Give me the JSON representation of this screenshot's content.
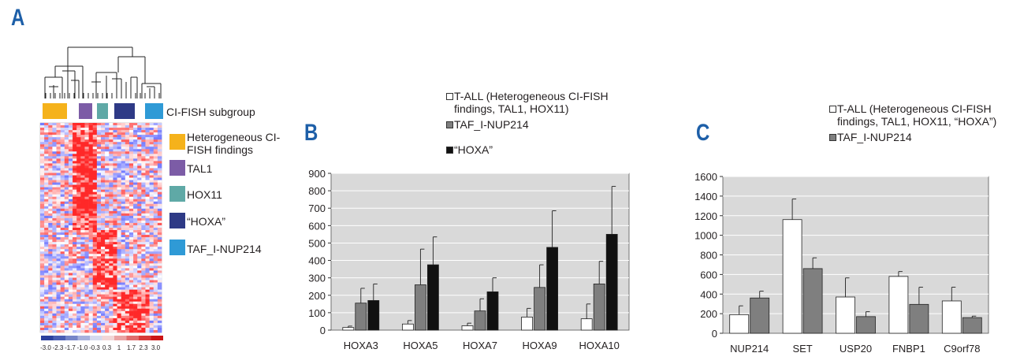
{
  "panels": {
    "a": {
      "letter": "A"
    },
    "b": {
      "letter": "B"
    },
    "c": {
      "letter": "C"
    }
  },
  "panel_a": {
    "subgroup_label": "CI-FISH subgroup",
    "groups": [
      {
        "label": "Heterogeneous CI-FISH findings",
        "color": "#f5b21b"
      },
      {
        "label": "TAL1",
        "color": "#7c5ca6"
      },
      {
        "label": "HOX11",
        "color": "#5fa9a6"
      },
      {
        "label": "“HOXA”",
        "color": "#2e3a86"
      },
      {
        "label": "TAF_I-NUP214",
        "color": "#2f9ad6"
      }
    ],
    "scale_labels": [
      "-3.0",
      "-2.3",
      "-1.7",
      "-1.0",
      "-0.3",
      "0.3",
      "1",
      "1.7",
      "2.3",
      "3.0"
    ]
  },
  "chart_data": [
    {
      "type": "bar",
      "legend": [
        {
          "name": "T-ALL (Heterogeneous CI-FISH findings, TAL1, HOX11)",
          "color": "#ffffff"
        },
        {
          "name": "TAF_I-NUP214",
          "color": "#7f7f7f"
        },
        {
          "name": "“HOXA”",
          "color": "#111111"
        }
      ],
      "categories": [
        "HOXA3",
        "HOXA5",
        "HOXA7",
        "HOXA9",
        "HOXA10"
      ],
      "series": [
        {
          "name": "T-ALL (Heterogeneous CI-FISH findings, TAL1, HOX11)",
          "values": [
            15,
            35,
            25,
            75,
            65
          ],
          "errors": [
            8,
            20,
            15,
            50,
            85
          ]
        },
        {
          "name": "TAF_I-NUP214",
          "values": [
            155,
            260,
            110,
            245,
            265
          ],
          "errors": [
            85,
            205,
            70,
            130,
            130
          ]
        },
        {
          "name": "“HOXA”",
          "values": [
            170,
            375,
            220,
            475,
            550
          ],
          "errors": [
            95,
            160,
            80,
            210,
            275
          ]
        }
      ],
      "ylim": [
        0,
        900
      ],
      "yticks": [
        0,
        100,
        200,
        300,
        400,
        500,
        600,
        700,
        800,
        900
      ],
      "grid": true
    },
    {
      "type": "bar",
      "legend": [
        {
          "name": "T-ALL (Heterogeneous CI-FISH findings, TAL1, HOX11, “HOXA”)",
          "color": "#ffffff"
        },
        {
          "name": "TAF_I-NUP214",
          "color": "#7f7f7f"
        }
      ],
      "categories": [
        "NUP214",
        "SET",
        "USP20",
        "FNBP1",
        "C9orf78"
      ],
      "series": [
        {
          "name": "T-ALL (Heterogeneous CI-FISH findings, TAL1, HOX11, “HOXA”)",
          "values": [
            190,
            1160,
            370,
            580,
            330
          ],
          "errors": [
            90,
            210,
            195,
            50,
            140
          ]
        },
        {
          "name": "TAF_I-NUP214",
          "values": [
            360,
            660,
            170,
            295,
            160
          ],
          "errors": [
            70,
            110,
            50,
            175,
            15
          ]
        }
      ],
      "ylim": [
        0,
        1600
      ],
      "yticks": [
        0,
        200,
        400,
        600,
        800,
        1000,
        1200,
        1400,
        1600
      ],
      "grid": true
    }
  ]
}
